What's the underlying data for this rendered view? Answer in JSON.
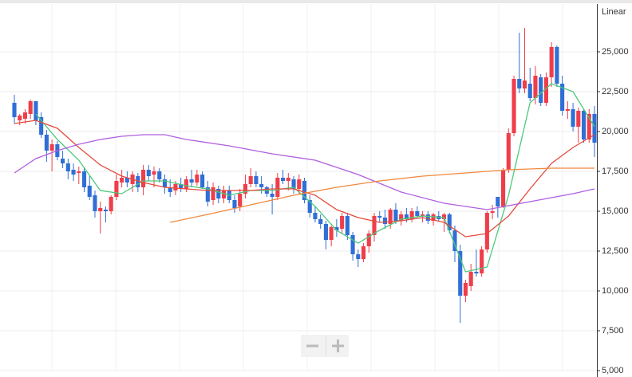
{
  "chart_data": {
    "type": "candlestick",
    "scale_label": "Linear",
    "up_color": "#ef3e4a",
    "down_color": "#2f6fd6",
    "ylim": [
      5000,
      28000
    ],
    "yticks": [
      {
        "value": 5000,
        "label": "5,000"
      },
      {
        "value": 7500,
        "label": "7,500"
      },
      {
        "value": 10000,
        "label": "10,000"
      },
      {
        "value": 12500,
        "label": "12,500"
      },
      {
        "value": 15000,
        "label": "15,000"
      },
      {
        "value": 17500,
        "label": "17,500"
      },
      {
        "value": 20000,
        "label": "20,000"
      },
      {
        "value": 22500,
        "label": "22,500"
      },
      {
        "value": 25000,
        "label": "25,000"
      }
    ],
    "grid": true,
    "candles": [
      [
        21800,
        22300,
        20500,
        20900
      ],
      [
        20700,
        21100,
        20400,
        21000
      ],
      [
        20800,
        21400,
        20500,
        21200
      ],
      [
        21100,
        22000,
        20800,
        21900
      ],
      [
        21900,
        21900,
        20400,
        20700
      ],
      [
        20900,
        21200,
        19600,
        19800
      ],
      [
        19800,
        20100,
        18100,
        18800
      ],
      [
        18800,
        19500,
        17500,
        19200
      ],
      [
        19200,
        19400,
        18200,
        18400
      ],
      [
        18300,
        18800,
        17700,
        18000
      ],
      [
        18000,
        18300,
        17000,
        17500
      ],
      [
        17600,
        18000,
        16900,
        17300
      ],
      [
        17400,
        17800,
        16700,
        17500
      ],
      [
        17500,
        17700,
        16200,
        16500
      ],
      [
        16600,
        17200,
        15700,
        15900
      ],
      [
        16000,
        16300,
        14600,
        15000
      ],
      [
        15000,
        15600,
        13600,
        15200
      ],
      [
        15100,
        15300,
        14300,
        15000
      ],
      [
        15000,
        16000,
        14800,
        15900
      ],
      [
        15900,
        17300,
        15700,
        16900
      ],
      [
        16800,
        17600,
        16500,
        17100
      ],
      [
        17100,
        17500,
        16500,
        16800
      ],
      [
        16700,
        17500,
        16200,
        17300
      ],
      [
        17200,
        17400,
        16200,
        16500
      ],
      [
        16500,
        17900,
        16000,
        17600
      ],
      [
        17600,
        17900,
        16900,
        17200
      ],
      [
        17300,
        17800,
        16500,
        17500
      ],
      [
        17500,
        17700,
        16800,
        17000
      ],
      [
        17000,
        17300,
        16100,
        16500
      ],
      [
        16500,
        17000,
        15900,
        16200
      ],
      [
        16300,
        16900,
        16000,
        16700
      ],
      [
        16700,
        17100,
        16200,
        16400
      ],
      [
        16400,
        17200,
        16200,
        17000
      ],
      [
        17000,
        17600,
        16500,
        16800
      ],
      [
        16800,
        17600,
        16600,
        17300
      ],
      [
        17300,
        17500,
        16400,
        16500
      ],
      [
        16500,
        16900,
        15300,
        15600
      ],
      [
        15700,
        16800,
        15400,
        16500
      ],
      [
        16400,
        16600,
        15500,
        15800
      ],
      [
        15800,
        16600,
        15500,
        16300
      ],
      [
        16300,
        16600,
        15500,
        15700
      ],
      [
        15700,
        16000,
        14900,
        15200
      ],
      [
        15300,
        16400,
        15000,
        16100
      ],
      [
        16100,
        17300,
        15800,
        16700
      ],
      [
        16700,
        17700,
        16500,
        17200
      ],
      [
        17200,
        17500,
        16500,
        16700
      ],
      [
        16700,
        17200,
        16100,
        16500
      ],
      [
        16500,
        16600,
        15900,
        16100
      ],
      [
        16100,
        16700,
        14800,
        15900
      ],
      [
        15900,
        17400,
        15700,
        17100
      ],
      [
        17100,
        17600,
        16700,
        16900
      ],
      [
        16900,
        17400,
        16300,
        17100
      ],
      [
        17000,
        17200,
        16100,
        16400
      ],
      [
        16400,
        17300,
        16100,
        17000
      ],
      [
        16900,
        17100,
        15500,
        15700
      ],
      [
        15700,
        16000,
        14600,
        14900
      ],
      [
        14900,
        15300,
        14300,
        14500
      ],
      [
        14500,
        14800,
        13900,
        14200
      ],
      [
        14200,
        14400,
        12600,
        13200
      ],
      [
        13200,
        14100,
        12800,
        14000
      ],
      [
        14000,
        14500,
        13400,
        13800
      ],
      [
        13900,
        14900,
        13600,
        14700
      ],
      [
        14700,
        14900,
        13200,
        13500
      ],
      [
        13500,
        13700,
        11900,
        12300
      ],
      [
        12300,
        12600,
        11500,
        12000
      ],
      [
        12000,
        13000,
        11800,
        12800
      ],
      [
        12800,
        13800,
        12400,
        13600
      ],
      [
        13500,
        14900,
        13100,
        14700
      ],
      [
        14700,
        15000,
        14300,
        14600
      ],
      [
        14600,
        15100,
        13900,
        14200
      ],
      [
        14200,
        15200,
        13900,
        15100
      ],
      [
        15100,
        15500,
        14200,
        14400
      ],
      [
        14400,
        15000,
        14100,
        14800
      ],
      [
        14800,
        15200,
        14300,
        14500
      ],
      [
        14500,
        15200,
        14300,
        15000
      ],
      [
        15000,
        15300,
        14600,
        14700
      ],
      [
        14700,
        15000,
        14300,
        14800
      ],
      [
        14800,
        15000,
        14200,
        14400
      ],
      [
        14400,
        14900,
        14100,
        14800
      ],
      [
        14700,
        15000,
        14400,
        14500
      ],
      [
        14500,
        14900,
        13700,
        14800
      ],
      [
        14800,
        14900,
        13600,
        13800
      ],
      [
        13800,
        14100,
        11800,
        12500
      ],
      [
        12500,
        12900,
        8000,
        9700
      ],
      [
        9700,
        10700,
        9300,
        10500
      ],
      [
        10300,
        11700,
        10000,
        11200
      ],
      [
        11200,
        12600,
        10900,
        11100
      ],
      [
        11100,
        12800,
        10900,
        12600
      ],
      [
        12600,
        15000,
        12400,
        14900
      ],
      [
        14900,
        15400,
        14500,
        15000
      ],
      [
        15900,
        15900,
        14600,
        15300
      ],
      [
        15300,
        17700,
        15200,
        17600
      ],
      [
        17600,
        20200,
        17400,
        19900
      ],
      [
        19900,
        23500,
        19700,
        23300
      ],
      [
        23300,
        26200,
        22400,
        22700
      ],
      [
        22700,
        26500,
        22400,
        23200
      ],
      [
        23000,
        24000,
        21900,
        22100
      ],
      [
        22100,
        24100,
        21700,
        23500
      ],
      [
        23400,
        23600,
        21600,
        21800
      ],
      [
        21800,
        23700,
        21600,
        23400
      ],
      [
        23400,
        25600,
        22800,
        25300
      ],
      [
        25300,
        25400,
        22800,
        23000
      ],
      [
        23000,
        23500,
        21000,
        21300
      ],
      [
        21300,
        21900,
        20800,
        21400
      ],
      [
        21400,
        21800,
        20000,
        20300
      ],
      [
        20300,
        21500,
        19300,
        21300
      ],
      [
        21300,
        21400,
        19300,
        19500
      ],
      [
        19500,
        21400,
        19300,
        21100
      ],
      [
        21100,
        21600,
        18400,
        19300
      ]
    ],
    "series": [
      {
        "color": "#4cc97a",
        "x": [
          4,
          8,
          12,
          16,
          20,
          24,
          28,
          32,
          36,
          40,
          44,
          48,
          52,
          56,
          60,
          64,
          68,
          72,
          76,
          80,
          84,
          88,
          92,
          96,
          100,
          104,
          108
        ],
        "values": [
          21100,
          19500,
          18200,
          16300,
          16100,
          16900,
          16900,
          16600,
          16400,
          16000,
          16300,
          16300,
          16500,
          15300,
          13800,
          13000,
          13800,
          14500,
          14700,
          14600,
          11200,
          11500,
          16000,
          21800,
          23000,
          22500,
          20300
        ]
      },
      {
        "color": "#e64a3c",
        "x": [
          0,
          4,
          8,
          12,
          16,
          20,
          24,
          28,
          32,
          36,
          40,
          44,
          48,
          52,
          56,
          60,
          64,
          68,
          72,
          76,
          80,
          84,
          88,
          92,
          96,
          100,
          104,
          108
        ],
        "values": [
          20500,
          20700,
          20200,
          19000,
          17900,
          17200,
          16800,
          16500,
          16400,
          16300,
          16300,
          16300,
          16400,
          16400,
          16000,
          15100,
          14600,
          14300,
          14400,
          14600,
          14300,
          13400,
          13600,
          14700,
          16400,
          18000,
          19000,
          19800
        ]
      },
      {
        "color": "#b05fe0",
        "x": [
          0,
          4,
          8,
          12,
          16,
          20,
          24,
          28,
          32,
          40,
          48,
          56,
          64,
          72,
          80,
          88,
          96,
          104,
          108
        ],
        "values": [
          17400,
          18300,
          18800,
          19200,
          19500,
          19700,
          19800,
          19800,
          19500,
          19100,
          18600,
          18200,
          17300,
          16200,
          15500,
          15100,
          15600,
          16100,
          16400
        ]
      },
      {
        "color": "#f0883e",
        "x": [
          29,
          36,
          44,
          52,
          60,
          68,
          76,
          84,
          92,
          100,
          108
        ],
        "values": [
          14300,
          14800,
          15400,
          16000,
          16500,
          16900,
          17200,
          17400,
          17600,
          17700,
          17700
        ]
      }
    ]
  }
}
